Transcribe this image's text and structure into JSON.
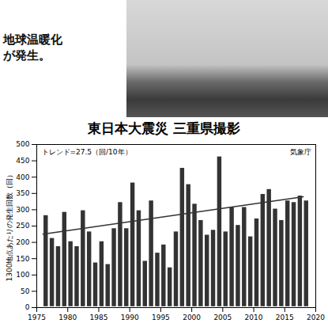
{
  "slide": {
    "text_lines": [
      "地球温暖化",
      "が発生。"
    ],
    "photo_caption": "東日本大震災 三重県撮影"
  },
  "chart_data": {
    "type": "bar",
    "x": [
      1976,
      1977,
      1978,
      1979,
      1980,
      1981,
      1982,
      1983,
      1984,
      1985,
      1986,
      1987,
      1988,
      1989,
      1990,
      1991,
      1992,
      1993,
      1994,
      1995,
      1996,
      1997,
      1998,
      1999,
      2000,
      2001,
      2002,
      2003,
      2004,
      2005,
      2006,
      2007,
      2008,
      2009,
      2010,
      2011,
      2012,
      2013,
      2014,
      2015,
      2016,
      2017,
      2018
    ],
    "values": [
      285,
      215,
      190,
      295,
      205,
      190,
      300,
      235,
      140,
      205,
      135,
      245,
      325,
      245,
      385,
      300,
      145,
      330,
      170,
      195,
      125,
      235,
      430,
      380,
      320,
      270,
      225,
      240,
      465,
      235,
      310,
      255,
      310,
      220,
      275,
      350,
      365,
      305,
      270,
      330,
      325,
      345,
      330
    ],
    "color": "#333333",
    "trend": {
      "x": [
        1976,
        2018
      ],
      "values": [
        225,
        340
      ],
      "color": "#333333"
    },
    "annotations": [
      "トレンド=27.5（回/10年）",
      "気象庁"
    ],
    "y_label": "1300地点あたりの発生回数（回）",
    "xlim": [
      1975,
      2020
    ],
    "xticks": [
      1975,
      1980,
      1985,
      1990,
      1995,
      2000,
      2005,
      2010,
      2015,
      2020
    ],
    "ylim": [
      0,
      500
    ],
    "yticks": [
      0,
      50,
      100,
      150,
      200,
      250,
      300,
      350,
      400,
      450,
      500
    ],
    "grid": false
  }
}
